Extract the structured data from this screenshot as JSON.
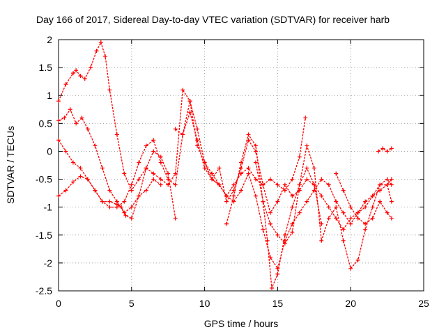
{
  "chart_data": {
    "type": "scatter",
    "title": "Day 166 of 2017, Sidereal Day-to-day VTEC variation (SDTVAR) for receiver harb",
    "xlabel": "GPS time / hours",
    "ylabel": "SDTVAR / TECUs",
    "xlim": [
      0,
      25
    ],
    "ylim": [
      -2.5,
      2
    ],
    "xticks": [
      0,
      5,
      10,
      15,
      20,
      25
    ],
    "yticks": [
      -2.5,
      -2,
      -1.5,
      -1,
      -0.5,
      0,
      0.5,
      1,
      1.5,
      2
    ],
    "grid": true,
    "marker": "+",
    "color": "#ff0000",
    "series": [
      {
        "name": "trace-1",
        "x": [
          0,
          0.5,
          1.0,
          1.2,
          1.5,
          1.8,
          2.2,
          2.6,
          2.9,
          3.2,
          3.5,
          4.0,
          4.5,
          5.0,
          5.5,
          6.0,
          6.5,
          7.0,
          7.5,
          8.0,
          8.5,
          9.0,
          9.5,
          10.0,
          10.5,
          11.0,
          11.5,
          12.0,
          12.5,
          13.0,
          13.5,
          14.0,
          14.5,
          15.0,
          15.5,
          16.0,
          16.5,
          16.9
        ],
        "y": [
          0.9,
          1.2,
          1.4,
          1.45,
          1.35,
          1.3,
          1.5,
          1.8,
          1.95,
          1.7,
          1.1,
          0.3,
          -0.4,
          -0.7,
          -0.5,
          -0.3,
          -0.4,
          -0.5,
          -0.6,
          -0.4,
          1.1,
          0.9,
          0.1,
          -0.2,
          -0.4,
          -0.6,
          -0.8,
          -0.6,
          -0.4,
          -0.3,
          -0.5,
          -0.6,
          -0.5,
          -0.6,
          -0.7,
          -0.5,
          -0.1,
          0.6
        ]
      },
      {
        "name": "trace-2",
        "x": [
          0,
          0.4,
          0.8,
          1.2,
          1.6,
          2.0,
          2.5,
          3.0,
          3.5,
          4.0,
          4.5,
          5.0,
          5.5,
          6.0,
          6.5,
          7.0
        ],
        "y": [
          0.55,
          0.6,
          0.75,
          0.5,
          0.6,
          0.4,
          0.1,
          -0.3,
          -0.7,
          -0.9,
          -1.1,
          -1.0,
          -0.8,
          -0.7,
          -0.5,
          -0.6
        ]
      },
      {
        "name": "trace-3",
        "x": [
          0,
          0.5,
          1.0,
          1.5,
          2.0,
          2.5,
          3.0,
          3.5,
          4.0,
          4.3,
          4.6,
          5.0,
          5.5,
          6.0,
          6.5,
          7.0,
          7.5,
          8.0
        ],
        "y": [
          0.2,
          0.0,
          -0.2,
          -0.3,
          -0.5,
          -0.7,
          -0.9,
          -0.9,
          -0.95,
          -1.0,
          -1.15,
          -1.2,
          -0.8,
          -0.3,
          0.0,
          -0.1,
          -0.4,
          -1.2
        ]
      },
      {
        "name": "trace-4",
        "x": [
          0,
          0.5,
          1.0,
          1.5,
          2.0,
          2.5,
          3.0,
          3.5,
          4.0,
          4.5,
          5.0,
          5.5,
          6.0,
          6.5,
          7.0,
          7.5,
          8.0,
          8.5,
          9.0,
          9.5,
          10.0,
          10.5,
          11.0
        ],
        "y": [
          -0.8,
          -0.7,
          -0.55,
          -0.45,
          -0.5,
          -0.7,
          -0.9,
          -1.0,
          -1.0,
          -0.9,
          -0.6,
          -0.2,
          0.1,
          0.2,
          -0.2,
          -0.5,
          -0.6,
          0.3,
          0.7,
          0.2,
          -0.3,
          -0.5,
          -0.6
        ]
      },
      {
        "name": "trace-5",
        "x": [
          8.0,
          8.5,
          9.0,
          9.5,
          10.0,
          10.5,
          11.0,
          11.5,
          12.0,
          12.5,
          13.0,
          13.5,
          14.0,
          14.5,
          15.0,
          15.5,
          16.0,
          16.5,
          17.0,
          17.5,
          18.0,
          18.5,
          19.0,
          19.5,
          20.0,
          20.5,
          21.0,
          21.5,
          22.0,
          22.5,
          22.8
        ],
        "y": [
          0.4,
          0.3,
          0.9,
          0.4,
          -0.2,
          -0.5,
          -0.3,
          -0.9,
          -0.7,
          -0.3,
          0.2,
          0.0,
          -0.6,
          -1.1,
          -0.9,
          -0.6,
          -0.8,
          -0.7,
          -0.5,
          -0.6,
          -0.8,
          -1.0,
          -1.2,
          -1.4,
          -1.2,
          -1.1,
          -1.0,
          -0.8,
          -0.6,
          -0.6,
          -0.9
        ]
      },
      {
        "name": "trace-6",
        "x": [
          10.0,
          10.5,
          11.0,
          11.5,
          12.0,
          12.5,
          13.0,
          13.5,
          14.0,
          14.5,
          15.0,
          15.5,
          16.0,
          16.5,
          17.0,
          17.5,
          18.0,
          18.5,
          19.0,
          19.5,
          20.0,
          20.5,
          21.0,
          21.5,
          22.0,
          22.5,
          22.8
        ],
        "y": [
          -0.2,
          -0.5,
          -0.6,
          -0.8,
          -0.9,
          -0.7,
          -0.4,
          -0.8,
          -1.4,
          -1.9,
          -2.1,
          -1.6,
          -1.3,
          -1.1,
          -0.9,
          -0.7,
          -0.5,
          -0.6,
          -0.9,
          -1.1,
          -1.3,
          -1.1,
          -0.9,
          -0.8,
          -0.7,
          -0.6,
          -0.5
        ]
      },
      {
        "name": "trace-7",
        "x": [
          11.5,
          12.0,
          12.5,
          13.0,
          13.5,
          14.0,
          14.3,
          14.6,
          15.0,
          15.5,
          16.0,
          16.5,
          17.0,
          17.5,
          18.0
        ],
        "y": [
          -1.3,
          -0.8,
          -0.2,
          0.3,
          0.1,
          -0.9,
          -1.6,
          -2.45,
          -2.2,
          -1.5,
          -1.0,
          -0.6,
          -0.3,
          -0.6,
          -1.3
        ]
      },
      {
        "name": "trace-8",
        "x": [
          13.5,
          14.0,
          14.5,
          15.0,
          15.5,
          16.0,
          16.5,
          17.0,
          17.5,
          18.0,
          18.5,
          19.0,
          19.5,
          20.0,
          20.5,
          21.0,
          21.5,
          22.0,
          22.5,
          22.8
        ],
        "y": [
          -0.2,
          -0.9,
          -1.3,
          -1.5,
          -1.65,
          -1.45,
          -0.6,
          0.1,
          -0.3,
          -1.6,
          -1.2,
          -1.0,
          -1.6,
          -2.1,
          -1.95,
          -1.4,
          -1.0,
          -0.6,
          -0.5,
          -0.6
        ]
      },
      {
        "name": "trace-9",
        "x": [
          19.0,
          19.5,
          20.0,
          20.5,
          21.0,
          21.5,
          22.0,
          22.5,
          22.8
        ],
        "y": [
          -0.4,
          -0.7,
          -1.0,
          -1.2,
          -1.3,
          -1.2,
          -0.9,
          -1.1,
          -1.2
        ]
      },
      {
        "name": "trace-10",
        "x": [
          21.9,
          22.2,
          22.5,
          22.8
        ],
        "y": [
          0.0,
          0.05,
          0.0,
          0.05
        ]
      }
    ]
  }
}
